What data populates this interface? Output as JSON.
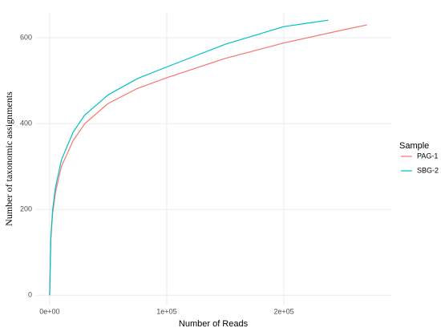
{
  "chart_data": {
    "type": "line",
    "x_label": "Number of Reads",
    "y_label": "Number of taxonomic assignments",
    "legend_title": "Sample",
    "legend": "right",
    "grid": true,
    "xlim": [
      -11600,
      291800
    ],
    "ylim": [
      -22,
      660
    ],
    "xticks": [
      {
        "value": 0,
        "label": "0e+00"
      },
      {
        "value": 100000,
        "label": "1e+05"
      },
      {
        "value": 200000,
        "label": "2e+05"
      }
    ],
    "yticks": [
      0,
      200,
      400,
      600
    ],
    "series": [
      {
        "name": "PAG-1",
        "color": "#F8766D",
        "x": [
          0,
          1000,
          2500,
          5000,
          10000,
          20000,
          30000,
          50000,
          75000,
          100000,
          150000,
          200000,
          250000,
          271000
        ],
        "values": [
          0,
          130,
          190,
          240,
          300,
          360,
          400,
          447,
          482,
          507,
          552,
          588,
          618,
          630
        ]
      },
      {
        "name": "SBG-2",
        "color": "#00BFC4",
        "x": [
          0,
          1000,
          2500,
          5000,
          10000,
          20000,
          30000,
          50000,
          75000,
          100000,
          150000,
          200000,
          238000
        ],
        "values": [
          0,
          135,
          198,
          252,
          315,
          380,
          420,
          467,
          505,
          532,
          585,
          626,
          641
        ]
      }
    ]
  }
}
